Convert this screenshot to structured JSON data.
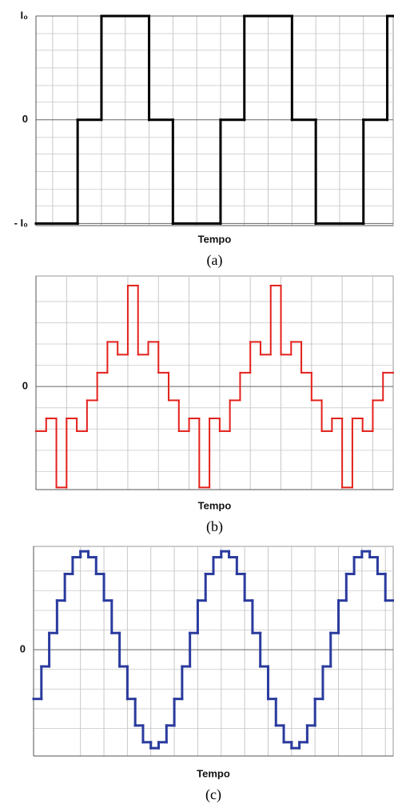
{
  "chart_data": [
    {
      "type": "step",
      "color": "#000000",
      "x_label": "Tempo",
      "caption": "(a)",
      "x": [
        0,
        1.75,
        2.75,
        4.75,
        5.75,
        7.75,
        8.75,
        10.75,
        11.75,
        13.75,
        14.75
      ],
      "values": [
        -1,
        0,
        1,
        0,
        -1,
        0,
        1,
        0,
        -1,
        0,
        1
      ],
      "xlim": [
        0,
        15
      ],
      "ylim": [
        -1.02,
        1
      ],
      "yticks": [
        {
          "value": 1,
          "label": "I₀"
        },
        0,
        {
          "value": -1,
          "label": "- I₀"
        }
      ],
      "xticks": [
        0.7,
        1.75,
        2.75,
        3.75,
        4.75,
        5.75,
        6.75,
        7.75,
        8.75,
        9.75,
        10.75,
        11.75,
        12.75,
        13.75
      ],
      "minor_yticks": [
        0.83,
        0.67,
        0.5,
        0.33,
        0.17,
        -0.17,
        -0.33,
        -0.5,
        -0.67,
        -0.83
      ],
      "grid": true
    },
    {
      "type": "step",
      "color": "#e3201b",
      "x_label": "Tempo",
      "caption": "(b)",
      "x": [
        0,
        1,
        2,
        3,
        4,
        5,
        6,
        7,
        8,
        9,
        10,
        11,
        12,
        13,
        14,
        15,
        16,
        17,
        18,
        19,
        20,
        21,
        22,
        23,
        24,
        25,
        26,
        27,
        28,
        29,
        30,
        31,
        32,
        33,
        34
      ],
      "values": [
        -0.42,
        -0.3,
        -0.95,
        -0.3,
        -0.42,
        -0.13,
        0.13,
        0.42,
        0.3,
        0.95,
        0.3,
        0.42,
        0.13,
        -0.13,
        -0.42,
        -0.3,
        -0.95,
        -0.3,
        -0.42,
        -0.13,
        0.13,
        0.42,
        0.3,
        0.95,
        0.3,
        0.42,
        0.13,
        -0.13,
        -0.42,
        -0.3,
        -0.95,
        -0.3,
        -0.42,
        -0.13,
        0.13
      ],
      "xlim": [
        0,
        35
      ],
      "ylim": [
        -0.97,
        1.04
      ],
      "yticks": [
        0
      ],
      "xticks": [
        3,
        6,
        9,
        12,
        15,
        18,
        21,
        24,
        27,
        30,
        33
      ],
      "minor_yticks": [
        0.8,
        0.6,
        0.4,
        0.2,
        -0.2,
        -0.4,
        -0.6,
        -0.8
      ],
      "grid": true
    },
    {
      "type": "step",
      "color": "#2a3b9e",
      "x_label": "Tempo",
      "caption": "(c)",
      "x": [
        0,
        1,
        2,
        3,
        4,
        5,
        6,
        7,
        8,
        9,
        10,
        11,
        12,
        13,
        14,
        15,
        16,
        17,
        18,
        19,
        20,
        21,
        22,
        23,
        24,
        25,
        26,
        27,
        28,
        29,
        30,
        31,
        32,
        33,
        34,
        35,
        36,
        37,
        38,
        39,
        40,
        41,
        42,
        43,
        44,
        45
      ],
      "values": [
        -0.5,
        -0.17,
        0.17,
        0.5,
        0.77,
        0.94,
        1,
        0.94,
        0.77,
        0.5,
        0.17,
        -0.17,
        -0.5,
        -0.77,
        -0.94,
        -1,
        -0.94,
        -0.77,
        -0.5,
        -0.17,
        0.17,
        0.5,
        0.77,
        0.94,
        1,
        0.94,
        0.77,
        0.5,
        0.17,
        -0.17,
        -0.5,
        -0.77,
        -0.94,
        -1,
        -0.94,
        -0.77,
        -0.5,
        -0.17,
        0.17,
        0.5,
        0.77,
        0.94,
        1,
        0.94,
        0.77,
        0.5
      ],
      "xlim": [
        0,
        46
      ],
      "ylim": [
        -1.08,
        1.05
      ],
      "yticks": [
        0
      ],
      "xticks": [
        6,
        9,
        12,
        15,
        18,
        21,
        24,
        27,
        30,
        33,
        36,
        39,
        42,
        45
      ],
      "minor_yticks": [
        0.8,
        0.6,
        0.4,
        0.2,
        -0.2,
        -0.4,
        -0.6,
        -0.8
      ],
      "grid": true
    }
  ]
}
